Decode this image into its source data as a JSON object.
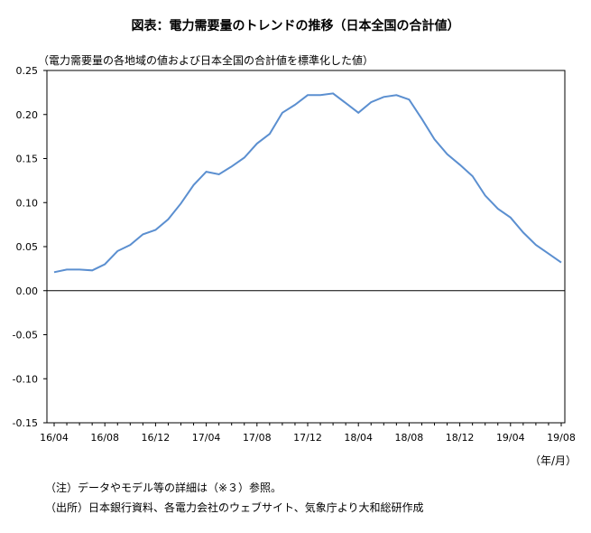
{
  "title": "図表：電力需要量のトレンドの推移（日本全国の合計値）",
  "subtitle": "（電力需要量の各地域の値および日本全国の合計値を標準化した値）",
  "unit_label": "（年/月）",
  "notes": [
    "（注）データやモデル等の詳細は（※３）参照。",
    "（出所）日本銀行資料、各電力会社のウェブサイト、気象庁より大和総研作成"
  ],
  "colors": {
    "line": "#5B8FD0",
    "axis": "#000000"
  },
  "chart_data": {
    "type": "line",
    "x_tick_labels": [
      "16/04",
      "16/08",
      "16/12",
      "17/04",
      "17/08",
      "17/12",
      "18/04",
      "18/08",
      "18/12",
      "19/04",
      "19/08"
    ],
    "y_tick_labels": [
      "0.25",
      "0.20",
      "0.15",
      "0.10",
      "0.05",
      "0.00",
      "-0.05",
      "-0.10",
      "-0.15"
    ],
    "ylim": [
      -0.15,
      0.25
    ],
    "y_ticks": [
      0.25,
      0.2,
      0.15,
      0.1,
      0.05,
      0.0,
      -0.05,
      -0.1,
      -0.15
    ],
    "x": [
      "2016/04",
      "2016/05",
      "2016/06",
      "2016/07",
      "2016/08",
      "2016/09",
      "2016/10",
      "2016/11",
      "2016/12",
      "2017/01",
      "2017/02",
      "2017/03",
      "2017/04",
      "2017/05",
      "2017/06",
      "2017/07",
      "2017/08",
      "2017/09",
      "2017/10",
      "2017/11",
      "2017/12",
      "2018/01",
      "2018/02",
      "2018/03",
      "2018/04",
      "2018/05",
      "2018/06",
      "2018/07",
      "2018/08",
      "2018/09",
      "2018/10",
      "2018/11",
      "2018/12",
      "2019/01",
      "2019/02",
      "2019/03",
      "2019/04",
      "2019/05",
      "2019/06",
      "2019/07",
      "2019/08"
    ],
    "values": [
      0.021,
      0.024,
      0.024,
      0.023,
      0.03,
      0.045,
      0.052,
      0.064,
      0.069,
      0.081,
      0.099,
      0.12,
      0.135,
      0.132,
      0.141,
      0.151,
      0.167,
      0.178,
      0.202,
      0.211,
      0.222,
      0.222,
      0.224,
      0.213,
      0.202,
      0.214,
      0.22,
      0.222,
      0.217,
      0.195,
      0.172,
      0.155,
      0.143,
      0.13,
      0.108,
      0.093,
      0.083,
      0.066,
      0.052,
      0.042,
      0.032
    ],
    "grid": false,
    "legend": "none"
  }
}
